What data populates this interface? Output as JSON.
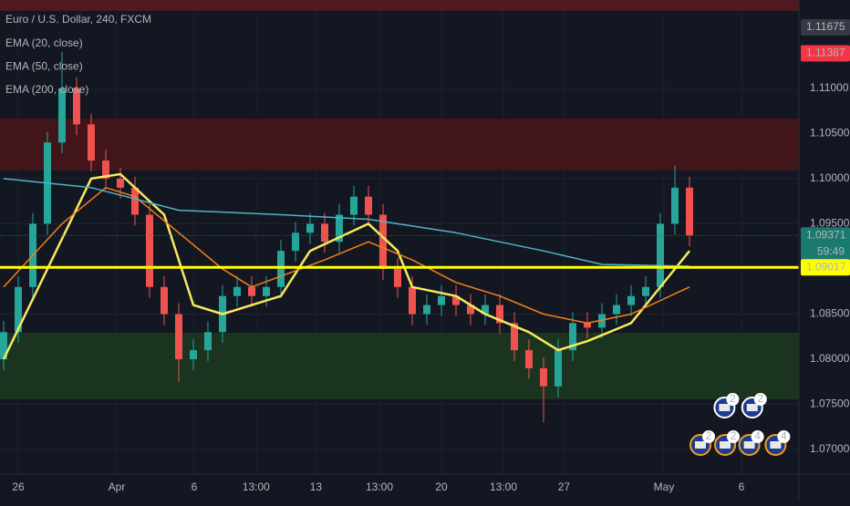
{
  "chart_data": {
    "type": "candlestick",
    "title": "Euro / U.S. Dollar, 240, FXCM",
    "x": [
      0,
      1,
      2,
      3,
      4,
      5,
      6,
      7,
      8,
      9,
      10,
      11,
      12,
      13,
      14,
      15,
      16,
      17,
      18,
      19,
      20,
      21,
      22,
      23,
      24,
      25,
      26,
      27,
      28,
      29,
      30,
      31,
      32,
      33,
      34,
      35,
      36,
      37,
      38,
      39,
      40,
      41,
      42,
      43,
      44,
      45,
      46,
      47
    ],
    "open": [
      1.08,
      1.083,
      1.088,
      1.095,
      1.104,
      1.11,
      1.106,
      1.102,
      1.1,
      1.099,
      1.096,
      1.088,
      1.085,
      1.08,
      1.081,
      1.083,
      1.087,
      1.088,
      1.087,
      1.088,
      1.092,
      1.094,
      1.095,
      1.093,
      1.096,
      1.098,
      1.096,
      1.09,
      1.088,
      1.085,
      1.086,
      1.087,
      1.086,
      1.085,
      1.086,
      1.084,
      1.081,
      1.079,
      1.077,
      1.081,
      1.084,
      1.0835,
      1.085,
      1.086,
      1.087,
      1.088,
      1.095,
      1.099
    ],
    "high": [
      1.0842,
      1.0892,
      1.0962,
      1.1052,
      1.114,
      1.1112,
      1.1072,
      1.1032,
      1.1012,
      1.1002,
      1.0972,
      1.0892,
      1.0862,
      1.0822,
      1.0842,
      1.0882,
      1.0892,
      1.0892,
      1.0892,
      1.0932,
      1.0952,
      1.0962,
      1.0962,
      1.0972,
      1.0992,
      1.0992,
      1.0972,
      1.0912,
      1.0892,
      1.0872,
      1.0882,
      1.0882,
      1.0872,
      1.0872,
      1.0872,
      1.0852,
      1.0822,
      1.0802,
      1.0822,
      1.0852,
      1.0852,
      1.0862,
      1.0872,
      1.0882,
      1.0892,
      1.0962,
      1.1015,
      1.1002
    ],
    "low": [
      1.0788,
      1.0818,
      1.0868,
      1.0938,
      1.1028,
      1.1048,
      1.1008,
      1.0988,
      1.0978,
      1.0948,
      1.0868,
      1.0838,
      1.0775,
      1.0788,
      1.0798,
      1.0818,
      1.0858,
      1.0858,
      1.0858,
      1.0868,
      1.0908,
      1.0928,
      1.0918,
      1.0918,
      1.0948,
      1.0948,
      1.0888,
      1.0868,
      1.0838,
      1.0838,
      1.0848,
      1.0848,
      1.0838,
      1.0838,
      1.0828,
      1.0798,
      1.0778,
      1.073,
      1.0758,
      1.0798,
      1.0823,
      1.0823,
      1.0838,
      1.0848,
      1.0858,
      1.0868,
      1.0938,
      1.0925
    ],
    "close": [
      1.083,
      1.088,
      1.095,
      1.104,
      1.11,
      1.106,
      1.102,
      1.1,
      1.099,
      1.096,
      1.088,
      1.085,
      1.08,
      1.081,
      1.083,
      1.087,
      1.088,
      1.087,
      1.088,
      1.092,
      1.094,
      1.095,
      1.093,
      1.096,
      1.098,
      1.096,
      1.09,
      1.088,
      1.085,
      1.086,
      1.087,
      1.086,
      1.085,
      1.086,
      1.084,
      1.081,
      1.079,
      1.077,
      1.081,
      1.084,
      1.0835,
      1.085,
      1.086,
      1.087,
      1.088,
      1.095,
      1.099,
      1.0937
    ],
    "up_color": "#26a69a",
    "down_color": "#ef5350",
    "series": [
      {
        "name": "EMA (20, close)",
        "color": "#f7ea5e",
        "width": 2.5,
        "x": [
          0,
          6,
          8,
          11,
          13,
          15,
          17,
          19,
          21,
          25,
          27,
          28,
          31,
          33,
          36,
          38,
          40,
          43,
          46,
          47
        ],
        "values": [
          1.08,
          1.1,
          1.1005,
          1.096,
          1.086,
          1.085,
          1.086,
          1.087,
          1.092,
          1.095,
          1.092,
          1.088,
          1.087,
          1.085,
          1.083,
          1.081,
          1.082,
          1.084,
          1.09,
          1.092
        ]
      },
      {
        "name": "EMA (50, close)",
        "color": "#f57f17",
        "width": 1.5,
        "x": [
          0,
          4,
          7,
          9,
          12,
          15,
          17,
          22,
          25,
          28,
          31,
          34,
          37,
          40,
          43,
          47
        ],
        "values": [
          1.088,
          1.095,
          1.099,
          1.098,
          1.094,
          1.09,
          1.088,
          1.091,
          1.093,
          1.091,
          1.0885,
          1.087,
          1.085,
          1.084,
          1.085,
          1.088
        ]
      },
      {
        "name": "EMA (200, close)",
        "color": "#4fb3c8",
        "width": 1.5,
        "x": [
          0,
          6,
          12,
          19,
          25,
          31,
          37,
          41,
          47
        ],
        "values": [
          1.1,
          1.099,
          1.0965,
          1.096,
          1.0955,
          1.094,
          1.092,
          1.0905,
          1.0903
        ]
      }
    ],
    "zones": [
      {
        "from": 1.11857,
        "to": 1.11978,
        "color": "#5c1a1e"
      },
      {
        "from": 1.1009,
        "to": 1.10665,
        "color": "#4a1519"
      },
      {
        "from": 1.07556,
        "to": 1.08293,
        "color": "#1d3a1f"
      }
    ],
    "hlines": [
      {
        "value": 1.09017,
        "color": "#ffff00",
        "width": 3
      }
    ],
    "xlim": [
      -0.25,
      54.5
    ],
    "ylim": [
      1.06728,
      1.11978
    ],
    "xticks": [
      {
        "value": 1.0,
        "label": "26"
      },
      {
        "value": 7.75,
        "label": "Apr"
      },
      {
        "value": 13.06,
        "label": "6"
      },
      {
        "value": 17.3,
        "label": "13:00"
      },
      {
        "value": 21.4,
        "label": "13"
      },
      {
        "value": 25.75,
        "label": "13:00"
      },
      {
        "value": 30.0,
        "label": "20"
      },
      {
        "value": 34.25,
        "label": "13:00"
      },
      {
        "value": 38.4,
        "label": "27"
      },
      {
        "value": 45.25,
        "label": "May"
      },
      {
        "value": 50.56,
        "label": "6"
      }
    ],
    "yticks": [
      {
        "value": 1.07,
        "label": "1.07000"
      },
      {
        "value": 1.075,
        "label": "1.07500"
      },
      {
        "value": 1.08,
        "label": "1.08000"
      },
      {
        "value": 1.085,
        "label": "1.08500"
      },
      {
        "value": 1.095,
        "label": "1.09500"
      },
      {
        "value": 1.1,
        "label": "1.10000"
      },
      {
        "value": 1.105,
        "label": "1.10500"
      },
      {
        "value": 1.11,
        "label": "1.11000"
      }
    ],
    "grid": true,
    "price_labels": [
      {
        "value": 1.11675,
        "label": "1.11675",
        "color": "#363a45",
        "text_color": "#d1d4dc"
      },
      {
        "value": 1.11387,
        "label": "1.11387",
        "color": "#f23645",
        "text_color": "#ffffff"
      },
      {
        "value": 1.09371,
        "label": "1.09371",
        "color": "#1b7a6e",
        "text_color": "#ffffff",
        "dotted": true
      },
      {
        "value": 1.09017,
        "label": "1.09017",
        "color": "#ffff00",
        "text_color": "#131722"
      }
    ],
    "countdown": "59:49",
    "events": [
      {
        "x": 47.75,
        "count": "2"
      },
      {
        "x": 49.44,
        "count": "2"
      },
      {
        "x": 51.1,
        "count": "4"
      },
      {
        "x": 52.9,
        "count": "4"
      }
    ],
    "events_upper": [
      {
        "x": 49.4,
        "count": "2"
      },
      {
        "x": 51.3,
        "count": "2"
      }
    ]
  }
}
